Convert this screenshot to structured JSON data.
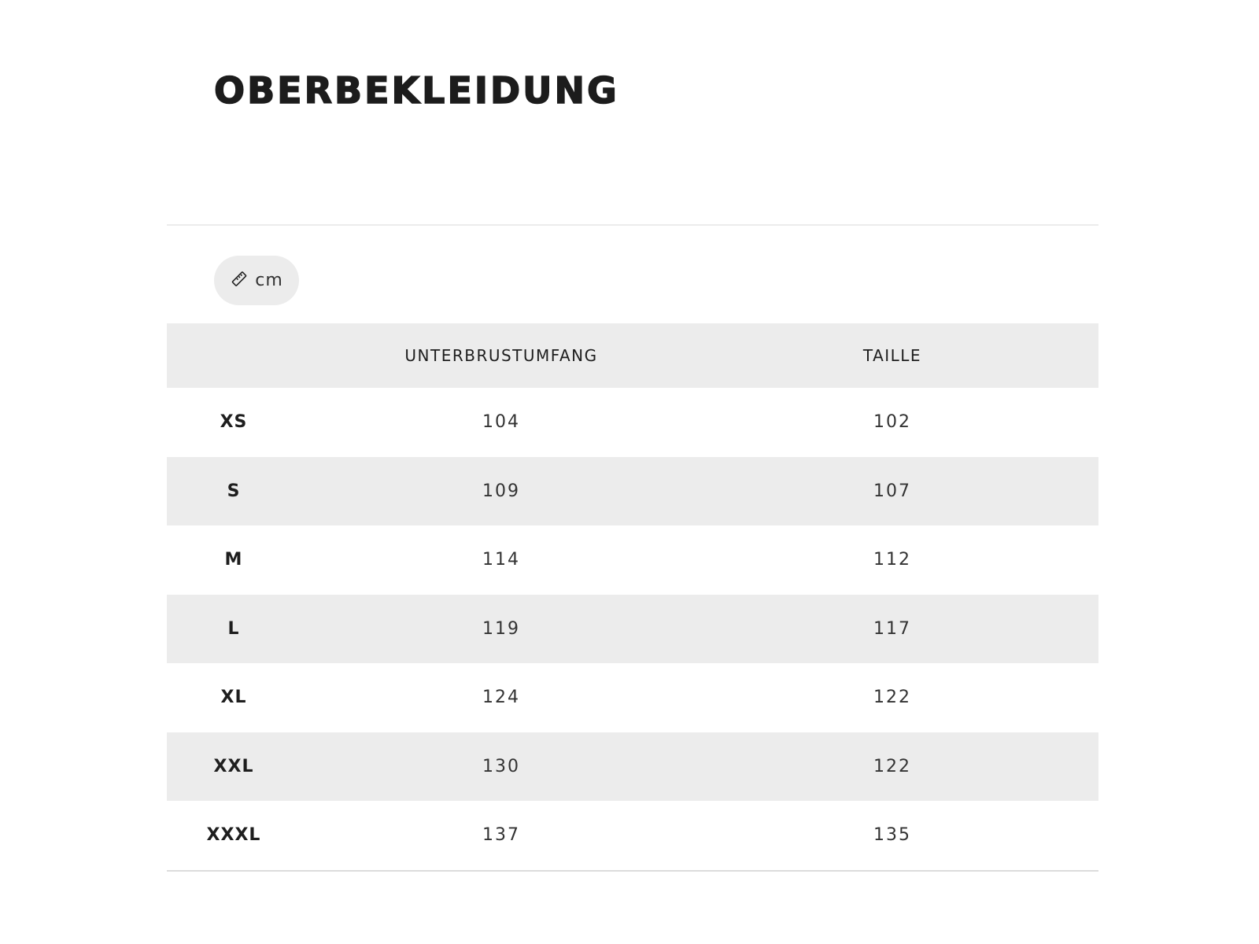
{
  "title": "OBERBEKLEIDUNG",
  "unit_toggle": {
    "icon": "ruler-icon",
    "label": "cm"
  },
  "table": {
    "headers": [
      "",
      "UNTERBRUSTUMFANG",
      "TAILLE"
    ],
    "rows": [
      {
        "size": "XS",
        "unterbrustumfang": "104",
        "taille": "102"
      },
      {
        "size": "S",
        "unterbrustumfang": "109",
        "taille": "107"
      },
      {
        "size": "M",
        "unterbrustumfang": "114",
        "taille": "112"
      },
      {
        "size": "L",
        "unterbrustumfang": "119",
        "taille": "117"
      },
      {
        "size": "XL",
        "unterbrustumfang": "124",
        "taille": "122"
      },
      {
        "size": "XXL",
        "unterbrustumfang": "130",
        "taille": "122"
      },
      {
        "size": "XXXL",
        "unterbrustumfang": "137",
        "taille": "135"
      }
    ]
  },
  "colors": {
    "stripe": "#ececec",
    "text": "#1e1e1e"
  }
}
